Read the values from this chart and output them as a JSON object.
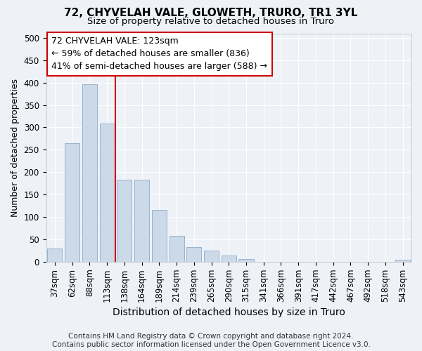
{
  "title": "72, CHYVELAH VALE, GLOWETH, TRURO, TR1 3YL",
  "subtitle": "Size of property relative to detached houses in Truro",
  "xlabel": "Distribution of detached houses by size in Truro",
  "ylabel": "Number of detached properties",
  "footer_line1": "Contains HM Land Registry data © Crown copyright and database right 2024.",
  "footer_line2": "Contains public sector information licensed under the Open Government Licence v3.0.",
  "categories": [
    "37sqm",
    "62sqm",
    "88sqm",
    "113sqm",
    "138sqm",
    "164sqm",
    "189sqm",
    "214sqm",
    "239sqm",
    "265sqm",
    "290sqm",
    "315sqm",
    "341sqm",
    "366sqm",
    "391sqm",
    "417sqm",
    "442sqm",
    "467sqm",
    "492sqm",
    "518sqm",
    "543sqm"
  ],
  "values": [
    30,
    265,
    397,
    308,
    183,
    183,
    115,
    58,
    33,
    25,
    14,
    6,
    0,
    0,
    0,
    0,
    0,
    0,
    0,
    0,
    4
  ],
  "bar_color": "#ccd9e8",
  "bar_edge_color": "#8aaac8",
  "property_line_color": "#cc0000",
  "property_line_x": 3.5,
  "annotation_text": "72 CHYVELAH VALE: 123sqm\n← 59% of detached houses are smaller (836)\n41% of semi-detached houses are larger (588) →",
  "annotation_box_color": "#ffffff",
  "annotation_box_edge_color": "#cc0000",
  "ylim": [
    0,
    510
  ],
  "yticks": [
    0,
    50,
    100,
    150,
    200,
    250,
    300,
    350,
    400,
    450,
    500
  ],
  "background_color": "#eef2f7",
  "grid_color": "#ffffff",
  "title_fontsize": 11,
  "subtitle_fontsize": 9.5,
  "xlabel_fontsize": 10,
  "ylabel_fontsize": 9,
  "tick_fontsize": 8.5,
  "annotation_fontsize": 9,
  "footer_fontsize": 7.5
}
